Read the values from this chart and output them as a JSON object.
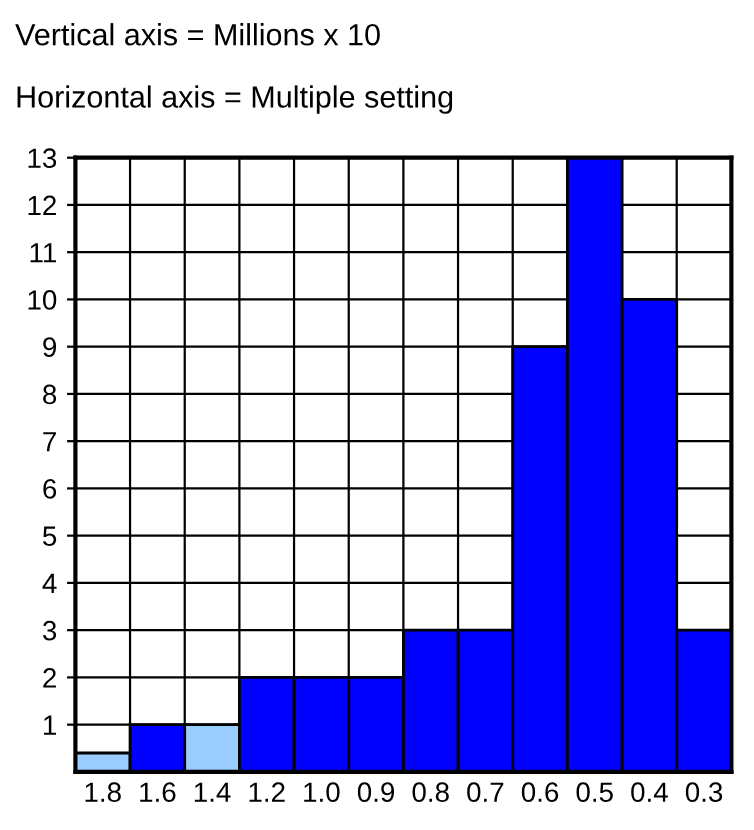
{
  "chart_data": {
    "type": "bar",
    "title": "Vertical axis = Millions x 10",
    "subtitle": "Horizontal axis = Multiple setting",
    "categories": [
      "1.8",
      "1.6",
      "1.4",
      "1.2",
      "1.0",
      "0.9",
      "0.8",
      "0.7",
      "0.6",
      "0.5",
      "0.4",
      "0.3"
    ],
    "values": [
      0.4,
      1,
      1,
      2,
      2,
      2,
      3,
      3,
      9,
      13,
      10,
      3
    ],
    "colors": [
      "#99ccff",
      "#0000ff",
      "#99ccff",
      "#0000ff",
      "#0000ff",
      "#0000ff",
      "#0000ff",
      "#0000ff",
      "#0000ff",
      "#0000ff",
      "#0000ff",
      "#0000ff"
    ],
    "ylim": [
      0,
      13
    ],
    "yticks": [
      1,
      2,
      3,
      4,
      5,
      6,
      7,
      8,
      9,
      10,
      11,
      12,
      13
    ],
    "grid": true
  }
}
